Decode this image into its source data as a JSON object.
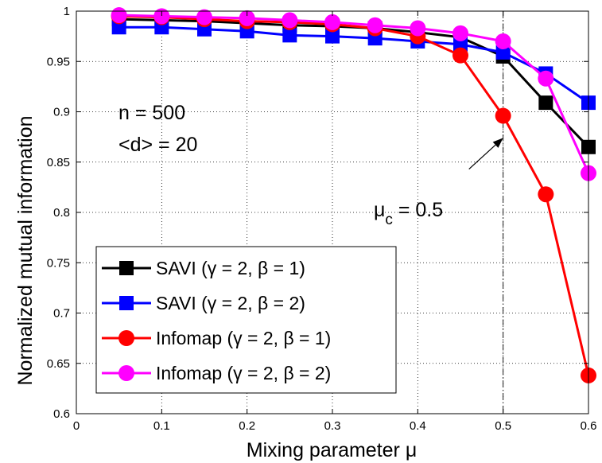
{
  "chart_data": {
    "type": "line",
    "title": "",
    "xlabel": "Mixing parameter μ",
    "ylabel": "Normalized mutual information",
    "xlim": [
      0,
      0.6
    ],
    "ylim": [
      0.6,
      1.0
    ],
    "grid": true,
    "legend_position": "bottom-left",
    "x_ticks": [
      0,
      0.1,
      0.2,
      0.3,
      0.4,
      0.5,
      0.6
    ],
    "x_tick_labels": [
      "0",
      "0.1",
      "0.2",
      "0.3",
      "0.4",
      "0.5",
      "0.6"
    ],
    "y_ticks": [
      0.6,
      0.65,
      0.7,
      0.75,
      0.8,
      0.85,
      0.9,
      0.95,
      1.0
    ],
    "y_tick_labels": [
      "0.6",
      "0.65",
      "0.7",
      "0.75",
      "0.8",
      "0.85",
      "0.9",
      "0.95",
      "1"
    ],
    "x": [
      0.05,
      0.1,
      0.15,
      0.2,
      0.25,
      0.3,
      0.35,
      0.4,
      0.45,
      0.5,
      0.55,
      0.6
    ],
    "series": [
      {
        "name": "SAVI (γ = 2, β = 1)",
        "color": "#000000",
        "marker": "square",
        "values": [
          0.992,
          0.991,
          0.99,
          0.988,
          0.986,
          0.985,
          0.983,
          0.979,
          0.974,
          0.955,
          0.909,
          0.865
        ]
      },
      {
        "name": "SAVI (γ = 2, β = 2)",
        "color": "#0000ff",
        "marker": "square",
        "values": [
          0.984,
          0.984,
          0.982,
          0.98,
          0.976,
          0.975,
          0.973,
          0.97,
          0.967,
          0.959,
          0.938,
          0.909
        ]
      },
      {
        "name": "Infomap (γ = 2, β = 1)",
        "color": "#ff0000",
        "marker": "circle",
        "values": [
          0.995,
          0.994,
          0.992,
          0.99,
          0.989,
          0.987,
          0.983,
          0.975,
          0.956,
          0.896,
          0.818,
          0.638
        ]
      },
      {
        "name": "Infomap (γ = 2, β = 2)",
        "color": "#ff00ff",
        "marker": "circle",
        "values": [
          0.996,
          0.995,
          0.994,
          0.993,
          0.991,
          0.989,
          0.986,
          0.983,
          0.978,
          0.97,
          0.933,
          0.839
        ]
      }
    ],
    "reference_line": {
      "x": 0.5,
      "style": "dash-dot"
    },
    "annotations": {
      "n_label": "n = 500",
      "d_label": "<d> = 20",
      "mu_symbol": "μ",
      "mu_subscript": "c",
      "mu_value": " = 0.5",
      "arrow_tip": {
        "x": 0.5,
        "y": 0.874
      },
      "arrow_tail": {
        "x": 0.46,
        "y": 0.843
      }
    }
  }
}
